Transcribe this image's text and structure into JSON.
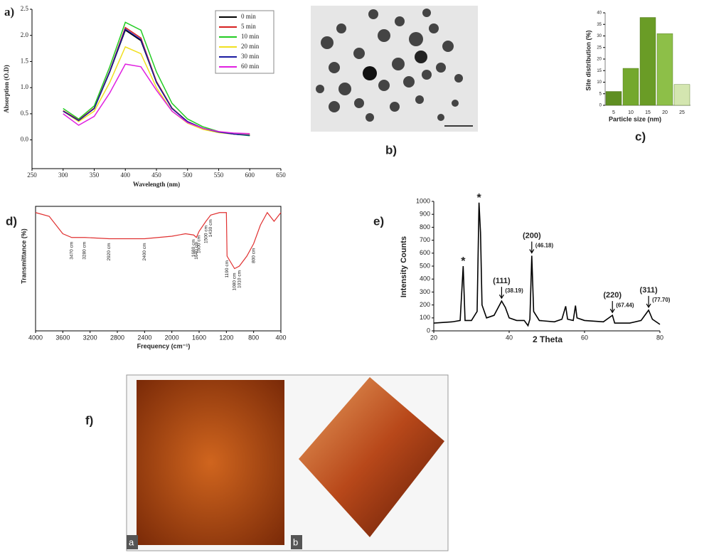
{
  "chart_data": [
    {
      "type": "line",
      "panel_label": "a)",
      "xlabel": "Wavelength (nm)",
      "ylabel": "Absorption (O.D)",
      "x": [
        300,
        325,
        350,
        375,
        400,
        425,
        450,
        475,
        500,
        525,
        550,
        575,
        600
      ],
      "series": [
        {
          "name": "0 min",
          "color": "#000000",
          "values": [
            0.55,
            0.38,
            0.6,
            1.3,
            2.1,
            1.9,
            1.1,
            0.6,
            0.35,
            0.22,
            0.15,
            0.11,
            0.09
          ]
        },
        {
          "name": "5 min",
          "color": "#d62020",
          "values": [
            0.56,
            0.38,
            0.61,
            1.32,
            2.15,
            1.95,
            1.12,
            0.61,
            0.35,
            0.22,
            0.15,
            0.11,
            0.09
          ]
        },
        {
          "name": "10 min",
          "color": "#22cc22",
          "values": [
            0.6,
            0.4,
            0.65,
            1.4,
            2.25,
            2.1,
            1.3,
            0.7,
            0.4,
            0.25,
            0.16,
            0.11,
            0.08
          ]
        },
        {
          "name": "20 min",
          "color": "#f0e020",
          "values": [
            0.55,
            0.35,
            0.55,
            1.1,
            1.78,
            1.65,
            1.0,
            0.55,
            0.32,
            0.2,
            0.14,
            0.11,
            0.1
          ]
        },
        {
          "name": "30 min",
          "color": "#1a1aa0",
          "values": [
            0.55,
            0.37,
            0.6,
            1.31,
            2.12,
            1.92,
            1.1,
            0.6,
            0.35,
            0.22,
            0.15,
            0.11,
            0.09
          ]
        },
        {
          "name": "60 min",
          "color": "#e020e0",
          "values": [
            0.5,
            0.28,
            0.45,
            0.9,
            1.45,
            1.4,
            0.95,
            0.55,
            0.33,
            0.22,
            0.16,
            0.13,
            0.12
          ]
        }
      ],
      "xlim": [
        250,
        650
      ],
      "xticks": [
        250,
        300,
        350,
        400,
        450,
        500,
        550,
        600,
        650
      ],
      "ylim": [
        -0.55,
        2.5
      ],
      "yticks": [
        {
          "value": 0,
          "label": "0.0"
        },
        0.5,
        {
          "value": 1,
          "label": "1.0"
        },
        1.5,
        {
          "value": 2,
          "label": "2.0"
        },
        2.5
      ],
      "legend": "top-right"
    },
    {
      "type": "bar",
      "panel_label": "c)",
      "xlabel": "Particle size (nm)",
      "ylabel": "Site distribution (%)",
      "categories": [
        "5",
        "10",
        "15",
        "20",
        "25"
      ],
      "values": [
        6,
        16,
        38,
        31,
        9
      ],
      "colors": [
        "#5f8f22",
        "#74a82e",
        "#6a9c26",
        "#8dbf48",
        "#d4e6b0"
      ],
      "ylim": [
        0,
        40
      ],
      "yticks": [
        0,
        5,
        10,
        15,
        20,
        25,
        30,
        35,
        40
      ]
    },
    {
      "type": "line",
      "panel_label": "d)",
      "xlabel": "Frequency (cm⁻¹)",
      "ylabel": "Transmittance (%)",
      "color": "#e03030",
      "x": [
        4000,
        3800,
        3600,
        3470,
        3280,
        2920,
        2400,
        2000,
        1800,
        1680,
        1640,
        1600,
        1500,
        1430,
        1300,
        1200,
        1190,
        1080,
        1010,
        900,
        800,
        700,
        600,
        500,
        400
      ],
      "values": [
        95,
        92,
        78,
        75,
        75,
        74,
        74,
        76,
        78,
        77,
        75,
        80,
        88,
        93,
        95,
        95,
        60,
        50,
        52,
        60,
        70,
        85,
        95,
        88,
        95
      ],
      "xlim": [
        4000,
        400
      ],
      "xticks": [
        4000,
        3600,
        3200,
        2800,
        2400,
        2000,
        1600,
        1200,
        800,
        400
      ],
      "ylim": [
        0,
        100
      ],
      "annotations": [
        {
          "label": "3470 cm",
          "x": 3470
        },
        {
          "label": "3280 cm",
          "x": 3280
        },
        {
          "label": "2920 cm",
          "x": 2920
        },
        {
          "label": "2400 cm",
          "x": 2400
        },
        {
          "label": "1680 cm",
          "x": 1680
        },
        {
          "label": "1640 cm",
          "x": 1640
        },
        {
          "label": "1600 cm",
          "x": 1600
        },
        {
          "label": "1500 cm",
          "x": 1500
        },
        {
          "label": "1430 cm",
          "x": 1430
        },
        {
          "label": "1190 cm",
          "x": 1190
        },
        {
          "label": "1080 cm",
          "x": 1080
        },
        {
          "label": "1010 cm",
          "x": 1010
        },
        {
          "label": "800 cm",
          "x": 800
        }
      ]
    },
    {
      "type": "line",
      "panel_label": "e)",
      "xlabel": "2 Theta",
      "ylabel": "Intensity Counts",
      "color": "#000000",
      "x": [
        20,
        25,
        27,
        27.8,
        28.3,
        30,
        31.5,
        32,
        32.4,
        32.8,
        34,
        36,
        38,
        39,
        40,
        42,
        44,
        45,
        45.5,
        46,
        46.5,
        48,
        52,
        54,
        55,
        55.5,
        57,
        57.6,
        58,
        60,
        65,
        67.4,
        68,
        72,
        75,
        77,
        78,
        80
      ],
      "values": [
        60,
        70,
        80,
        500,
        80,
        80,
        150,
        990,
        760,
        200,
        100,
        120,
        230,
        180,
        100,
        80,
        80,
        40,
        90,
        580,
        150,
        80,
        70,
        90,
        190,
        90,
        80,
        195,
        100,
        80,
        70,
        120,
        60,
        60,
        80,
        160,
        90,
        50
      ],
      "xlim": [
        20,
        80
      ],
      "xticks": [
        20,
        40,
        60,
        80
      ],
      "ylim": [
        0,
        1000
      ],
      "yticks": [
        0,
        100,
        200,
        300,
        400,
        500,
        600,
        700,
        800,
        900,
        1000
      ],
      "markers": [
        {
          "label": "*",
          "x": 27.8
        },
        {
          "label": "*",
          "x": 32
        }
      ],
      "peaks": [
        {
          "hkl": "(111)",
          "position": "(38.19)",
          "x": 38
        },
        {
          "hkl": "(200)",
          "position": "(46.18)",
          "x": 46
        },
        {
          "hkl": "(220)",
          "position": "(67.44)",
          "x": 67.4
        },
        {
          "hkl": "(311)",
          "position": "(77.70)",
          "x": 77
        }
      ]
    }
  ],
  "images": [
    {
      "label": "b)"
    },
    {
      "label": "f)",
      "sub_labels": [
        "a",
        "b"
      ]
    }
  ]
}
